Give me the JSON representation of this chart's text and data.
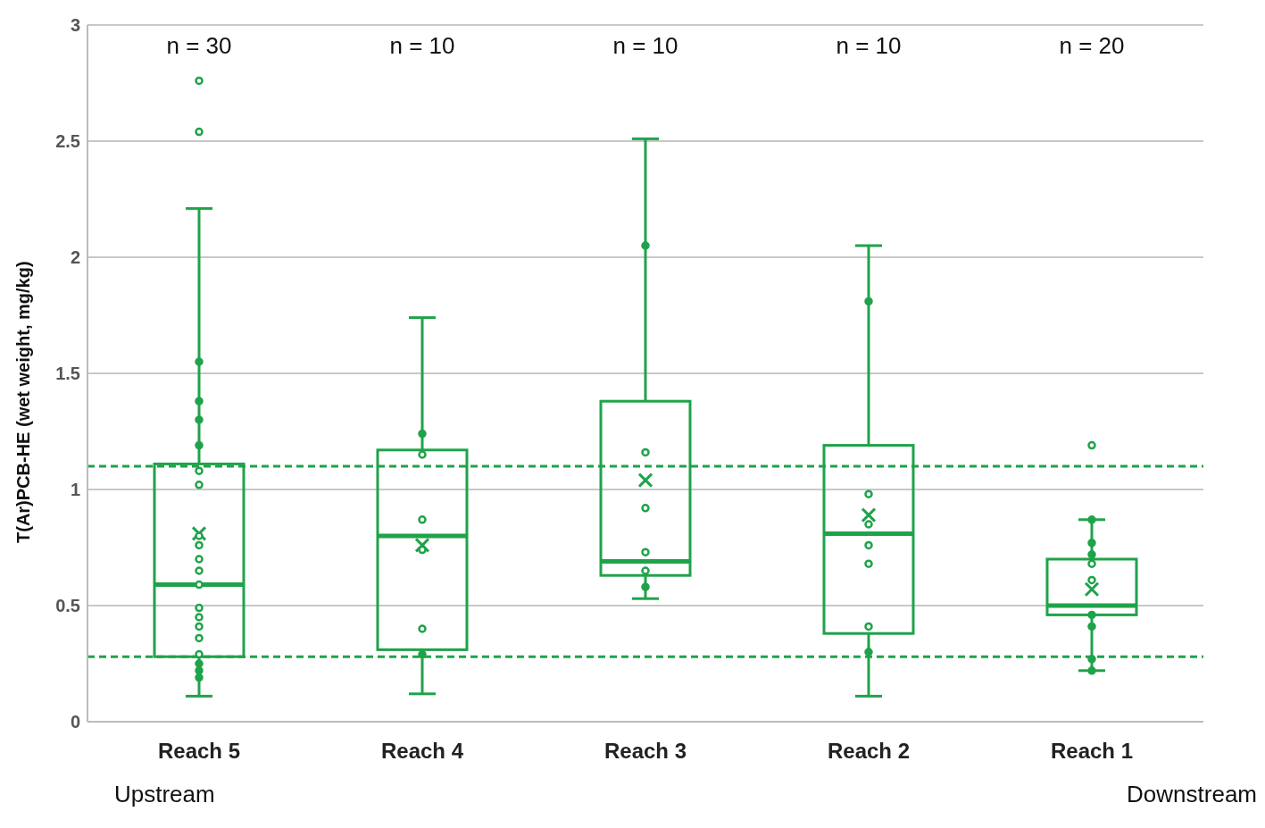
{
  "chart_data": {
    "type": "box",
    "ylabel": "T(Ar)PCB-HE (wet weight, mg/kg)",
    "categories": [
      "Reach 5",
      "Reach 4",
      "Reach 3",
      "Reach 2",
      "Reach 1"
    ],
    "color": "#1fa34a",
    "boxes": [
      {
        "low": 0.11,
        "q1": 0.28,
        "median": 0.59,
        "q3": 1.11,
        "high": 2.21,
        "mean": 0.81,
        "outliers": [
          2.76,
          2.54
        ]
      },
      {
        "low": 0.12,
        "q1": 0.31,
        "median": 0.8,
        "q3": 1.17,
        "high": 1.74,
        "mean": 0.76
      },
      {
        "low": 0.53,
        "q1": 0.63,
        "median": 0.69,
        "q3": 1.38,
        "high": 2.51,
        "mean": 1.04
      },
      {
        "low": 0.11,
        "q1": 0.38,
        "median": 0.81,
        "q3": 1.19,
        "high": 2.05,
        "mean": 0.89
      },
      {
        "low": 0.22,
        "q1": 0.46,
        "median": 0.5,
        "q3": 0.7,
        "high": 0.87,
        "mean": 0.57,
        "outliers": [
          1.19
        ]
      }
    ],
    "series": [
      {
        "type": "scatter",
        "color": "#1fa34a",
        "x": [
          "Reach 5",
          "Reach 5",
          "Reach 5",
          "Reach 5",
          "Reach 5",
          "Reach 5",
          "Reach 5",
          "Reach 5",
          "Reach 5",
          "Reach 5",
          "Reach 5",
          "Reach 5",
          "Reach 5",
          "Reach 5",
          "Reach 5",
          "Reach 5",
          "Reach 5",
          "Reach 5",
          "Reach 5",
          "Reach 4",
          "Reach 4",
          "Reach 4",
          "Reach 4",
          "Reach 4",
          "Reach 4",
          "Reach 3",
          "Reach 3",
          "Reach 3",
          "Reach 3",
          "Reach 3",
          "Reach 3",
          "Reach 2",
          "Reach 2",
          "Reach 2",
          "Reach 2",
          "Reach 2",
          "Reach 2",
          "Reach 2",
          "Reach 1",
          "Reach 1",
          "Reach 1",
          "Reach 1",
          "Reach 1",
          "Reach 1",
          "Reach 1",
          "Reach 1",
          "Reach 1"
        ],
        "values": [
          1.55,
          1.38,
          1.3,
          1.19,
          1.08,
          1.02,
          0.8,
          0.76,
          0.7,
          0.65,
          0.59,
          0.49,
          0.45,
          0.41,
          0.36,
          0.29,
          0.25,
          0.22,
          0.19,
          1.24,
          1.15,
          0.87,
          0.74,
          0.4,
          0.29,
          2.05,
          1.16,
          0.92,
          0.73,
          0.65,
          0.58,
          1.81,
          0.98,
          0.85,
          0.76,
          0.68,
          0.41,
          0.3,
          0.87,
          0.77,
          0.72,
          0.68,
          0.61,
          0.46,
          0.41,
          0.27,
          0.22
        ]
      }
    ],
    "ylim": [
      0,
      3
    ],
    "yticks": [
      0,
      0.5,
      1,
      1.5,
      2,
      2.5,
      3
    ],
    "grid": "y",
    "marker": "circle",
    "ref_lines": [
      {
        "axis": "y",
        "value": 1.1,
        "color": "#1fa34a",
        "line_style": "dashed"
      },
      {
        "axis": "y",
        "value": 0.28,
        "color": "#1fa34a",
        "line_style": "dashed"
      }
    ],
    "annotations": [
      "n = 30",
      "n = 10",
      "n = 10",
      "n = 10",
      "n = 20",
      "Upstream",
      "Downstream"
    ]
  }
}
